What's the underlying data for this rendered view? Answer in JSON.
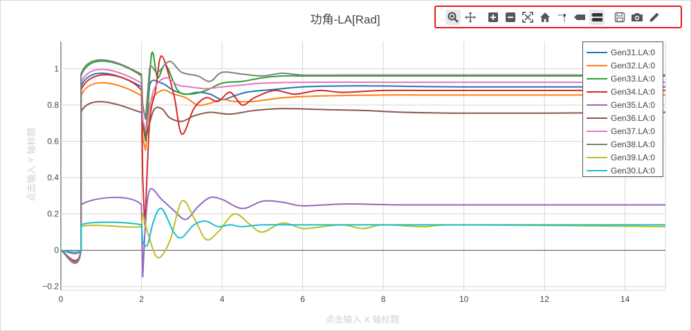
{
  "toolbar": {
    "icons": [
      "zoom-icon",
      "pan-icon",
      "zoom-in-icon",
      "zoom-out-icon",
      "autoscale-icon",
      "home-icon",
      "spike-lines-icon",
      "hover-closest-icon",
      "hover-compare-icon",
      "save-icon",
      "camera-icon",
      "pencil-icon"
    ],
    "active_colors": {
      "zoom": "#444444",
      "hover_compare": "#444444"
    }
  },
  "chart_data": {
    "type": "line",
    "title": "功角-LA[Rad]",
    "xlabel": "点击输入 X 轴标题",
    "ylabel": "点击输入 Y 轴标题",
    "xlim": [
      0,
      15
    ],
    "ylim": [
      -0.22,
      1.15
    ],
    "xticks": [
      0,
      2,
      4,
      6,
      8,
      10,
      12,
      14
    ],
    "yticks": [
      -0.2,
      0,
      0.2,
      0.4,
      0.6,
      0.8,
      1
    ],
    "ytick_labels": [
      "−0.2",
      "0",
      "0.2",
      "0.4",
      "0.6",
      "0.8",
      "1"
    ],
    "grid": true,
    "legend_position": "top-right",
    "series": [
      {
        "name": "Gen31.LA:0",
        "color": "#1f77b4",
        "points": [
          [
            0,
            0
          ],
          [
            0.5,
            0
          ],
          [
            0.5,
            0.9
          ],
          [
            2.0,
            0.9
          ],
          [
            2.03,
            0.7
          ],
          [
            2.1,
            0.62
          ],
          [
            2.2,
            0.91
          ],
          [
            2.5,
            0.92
          ],
          [
            2.8,
            0.88
          ],
          [
            3.1,
            0.86
          ],
          [
            3.4,
            0.87
          ],
          [
            3.7,
            0.86
          ],
          [
            4.0,
            0.83
          ],
          [
            4.3,
            0.85
          ],
          [
            4.6,
            0.87
          ],
          [
            5.0,
            0.88
          ],
          [
            5.5,
            0.89
          ],
          [
            6.0,
            0.9
          ],
          [
            7.0,
            0.905
          ],
          [
            8.0,
            0.905
          ],
          [
            10,
            0.9
          ],
          [
            15,
            0.9
          ]
        ]
      },
      {
        "name": "Gen32.LA:0",
        "color": "#ff7f0e",
        "points": [
          [
            0,
            0
          ],
          [
            0.5,
            0
          ],
          [
            0.5,
            0.85
          ],
          [
            2.0,
            0.85
          ],
          [
            2.03,
            0.62
          ],
          [
            2.1,
            0.55
          ],
          [
            2.2,
            0.8
          ],
          [
            2.5,
            0.88
          ],
          [
            2.8,
            0.86
          ],
          [
            3.1,
            0.84
          ],
          [
            3.4,
            0.8
          ],
          [
            3.7,
            0.81
          ],
          [
            4.0,
            0.83
          ],
          [
            4.3,
            0.82
          ],
          [
            4.8,
            0.82
          ],
          [
            5.5,
            0.84
          ],
          [
            6.5,
            0.85
          ],
          [
            8.0,
            0.855
          ],
          [
            10,
            0.855
          ],
          [
            15,
            0.855
          ]
        ]
      },
      {
        "name": "Gen33.LA:0",
        "color": "#2ca02c",
        "points": [
          [
            0,
            0
          ],
          [
            0.5,
            0
          ],
          [
            0.5,
            0.96
          ],
          [
            2.0,
            0.96
          ],
          [
            2.03,
            0.7
          ],
          [
            2.1,
            0.6
          ],
          [
            2.25,
            1.08
          ],
          [
            2.4,
            0.95
          ],
          [
            2.6,
            1.02
          ],
          [
            2.9,
            0.88
          ],
          [
            3.2,
            0.86
          ],
          [
            3.6,
            0.88
          ],
          [
            4.0,
            0.92
          ],
          [
            4.5,
            0.93
          ],
          [
            5.0,
            0.95
          ],
          [
            5.5,
            0.96
          ],
          [
            6.0,
            0.96
          ],
          [
            7.0,
            0.96
          ],
          [
            8.0,
            0.96
          ],
          [
            10,
            0.96
          ],
          [
            15,
            0.96
          ]
        ]
      },
      {
        "name": "Gen34.LA:0",
        "color": "#d62728",
        "points": [
          [
            0,
            0
          ],
          [
            0.5,
            0
          ],
          [
            0.5,
            0.88
          ],
          [
            2.0,
            0.88
          ],
          [
            2.03,
            0.4
          ],
          [
            2.08,
            0.14
          ],
          [
            2.2,
            0.7
          ],
          [
            2.35,
            0.88
          ],
          [
            2.5,
            1.07
          ],
          [
            2.8,
            0.86
          ],
          [
            3.0,
            0.64
          ],
          [
            3.3,
            0.78
          ],
          [
            3.6,
            0.84
          ],
          [
            3.9,
            0.82
          ],
          [
            4.2,
            0.87
          ],
          [
            4.5,
            0.8
          ],
          [
            4.8,
            0.84
          ],
          [
            5.3,
            0.88
          ],
          [
            5.8,
            0.86
          ],
          [
            6.4,
            0.88
          ],
          [
            7.0,
            0.87
          ],
          [
            8.0,
            0.88
          ],
          [
            9.0,
            0.88
          ],
          [
            10,
            0.88
          ],
          [
            15,
            0.88
          ]
        ]
      },
      {
        "name": "Gen35.LA:0",
        "color": "#9467bd",
        "points": [
          [
            0,
            0
          ],
          [
            0.5,
            0
          ],
          [
            0.5,
            0.25
          ],
          [
            2.0,
            0.25
          ],
          [
            2.03,
            -0.15
          ],
          [
            2.08,
            0.08
          ],
          [
            2.2,
            0.33
          ],
          [
            2.5,
            0.28
          ],
          [
            2.8,
            0.22
          ],
          [
            3.1,
            0.17
          ],
          [
            3.4,
            0.24
          ],
          [
            3.7,
            0.29
          ],
          [
            4.0,
            0.28
          ],
          [
            4.5,
            0.23
          ],
          [
            5.0,
            0.27
          ],
          [
            5.5,
            0.265
          ],
          [
            6.0,
            0.245
          ],
          [
            7.0,
            0.255
          ],
          [
            8.0,
            0.252
          ],
          [
            9.0,
            0.25
          ],
          [
            15,
            0.25
          ]
        ]
      },
      {
        "name": "Gen36.LA:0",
        "color": "#8c564b",
        "points": [
          [
            0,
            0
          ],
          [
            0.5,
            0
          ],
          [
            0.5,
            0.76
          ],
          [
            2.0,
            0.76
          ],
          [
            2.03,
            0.7
          ],
          [
            2.1,
            0.62
          ],
          [
            2.3,
            0.77
          ],
          [
            2.5,
            0.78
          ],
          [
            2.7,
            0.73
          ],
          [
            3.0,
            0.71
          ],
          [
            3.3,
            0.74
          ],
          [
            3.7,
            0.76
          ],
          [
            4.2,
            0.75
          ],
          [
            4.8,
            0.77
          ],
          [
            5.5,
            0.78
          ],
          [
            6.5,
            0.775
          ],
          [
            7.5,
            0.77
          ],
          [
            8.5,
            0.76
          ],
          [
            10,
            0.755
          ],
          [
            12,
            0.755
          ],
          [
            15,
            0.76
          ]
        ]
      },
      {
        "name": "Gen37.LA:0",
        "color": "#e377c2",
        "points": [
          [
            0,
            0
          ],
          [
            0.5,
            0
          ],
          [
            0.5,
            0.92
          ],
          [
            2.0,
            0.92
          ],
          [
            2.03,
            0.72
          ],
          [
            2.1,
            0.66
          ],
          [
            2.3,
            0.88
          ],
          [
            2.6,
            0.95
          ],
          [
            2.9,
            0.91
          ],
          [
            3.2,
            0.9
          ],
          [
            3.6,
            0.89
          ],
          [
            4.0,
            0.9
          ],
          [
            4.5,
            0.91
          ],
          [
            5.0,
            0.92
          ],
          [
            6.0,
            0.925
          ],
          [
            8.0,
            0.925
          ],
          [
            15,
            0.925
          ]
        ]
      },
      {
        "name": "Gen38.LA:0",
        "color": "#7f7f7f",
        "points": [
          [
            0,
            0
          ],
          [
            0.5,
            0
          ],
          [
            0.5,
            0.97
          ],
          [
            2.0,
            0.97
          ],
          [
            2.03,
            0.8
          ],
          [
            2.1,
            0.72
          ],
          [
            2.2,
            1.0
          ],
          [
            2.4,
            0.98
          ],
          [
            2.7,
            1.04
          ],
          [
            3.0,
            0.98
          ],
          [
            3.4,
            0.96
          ],
          [
            3.7,
            0.93
          ],
          [
            4.0,
            0.98
          ],
          [
            4.5,
            0.97
          ],
          [
            5.0,
            0.96
          ],
          [
            5.5,
            0.975
          ],
          [
            6.0,
            0.965
          ],
          [
            7.0,
            0.965
          ],
          [
            8.0,
            0.965
          ],
          [
            10,
            0.965
          ],
          [
            15,
            0.965
          ]
        ]
      },
      {
        "name": "Gen39.LA:0",
        "color": "#bcbd22",
        "points": [
          [
            0,
            0
          ],
          [
            0.5,
            0
          ],
          [
            0.5,
            0.13
          ],
          [
            2.0,
            0.13
          ],
          [
            2.03,
            0.2
          ],
          [
            2.15,
            0.1
          ],
          [
            2.4,
            -0.04
          ],
          [
            2.7,
            0.05
          ],
          [
            3.0,
            0.27
          ],
          [
            3.3,
            0.18
          ],
          [
            3.6,
            0.06
          ],
          [
            3.9,
            0.1
          ],
          [
            4.3,
            0.2
          ],
          [
            4.7,
            0.14
          ],
          [
            5.0,
            0.1
          ],
          [
            5.5,
            0.15
          ],
          [
            6.0,
            0.12
          ],
          [
            6.5,
            0.13
          ],
          [
            7.0,
            0.14
          ],
          [
            7.5,
            0.12
          ],
          [
            8.0,
            0.14
          ],
          [
            9.0,
            0.13
          ],
          [
            10,
            0.14
          ],
          [
            15,
            0.13
          ]
        ]
      },
      {
        "name": "Gen30.LA:0",
        "color": "#17becf",
        "points": [
          [
            0,
            0
          ],
          [
            0.5,
            0
          ],
          [
            0.5,
            0.14
          ],
          [
            2.0,
            0.14
          ],
          [
            2.03,
            0.05
          ],
          [
            2.15,
            0.03
          ],
          [
            2.3,
            0.16
          ],
          [
            2.5,
            0.23
          ],
          [
            2.8,
            0.1
          ],
          [
            3.0,
            0.07
          ],
          [
            3.3,
            0.14
          ],
          [
            3.6,
            0.16
          ],
          [
            3.9,
            0.13
          ],
          [
            4.2,
            0.14
          ],
          [
            4.5,
            0.13
          ],
          [
            5.0,
            0.14
          ],
          [
            6.0,
            0.14
          ],
          [
            8.0,
            0.14
          ],
          [
            15,
            0.14
          ]
        ]
      }
    ]
  }
}
